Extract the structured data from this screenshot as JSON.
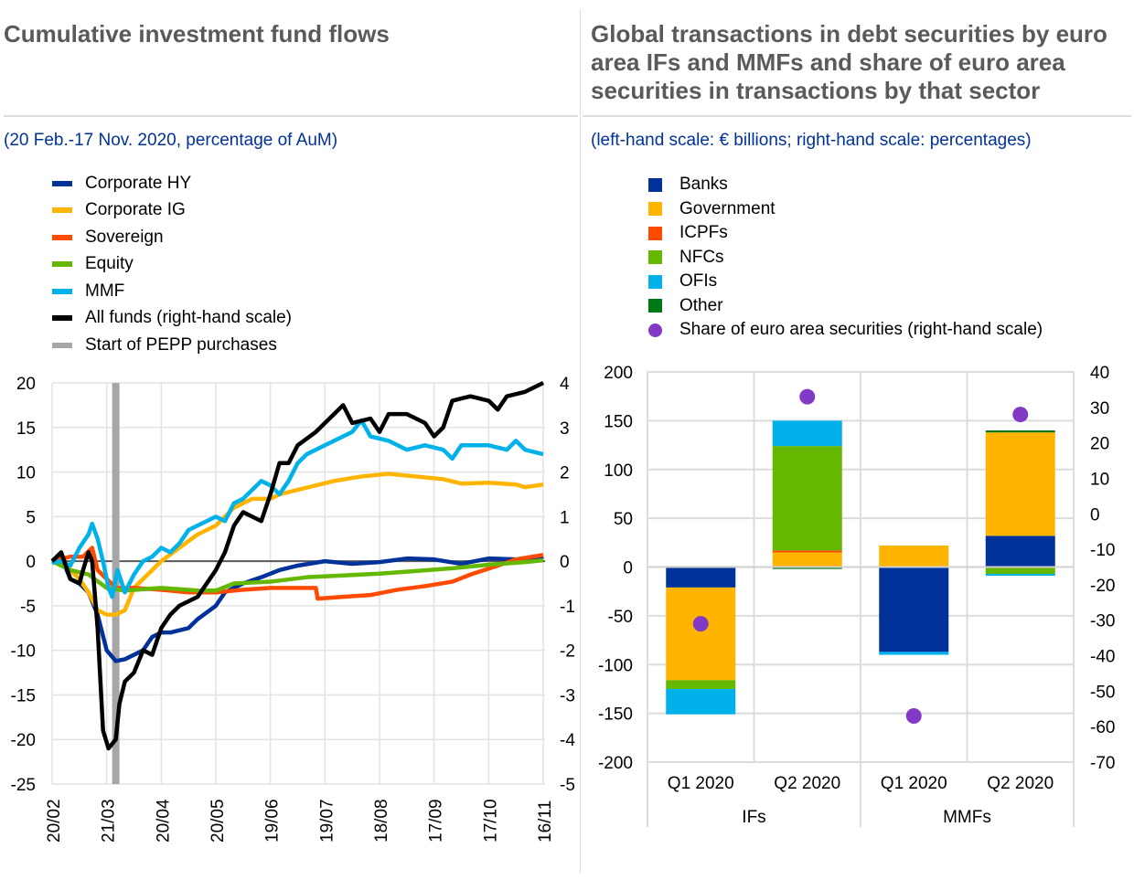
{
  "chart_data": [
    {
      "type": "line",
      "title": "Cumulative investment fund flows",
      "subtitle": "(20 Feb.-17 Nov. 2020, percentage of AuM)",
      "x_unit": "days since 20 Feb. 2020",
      "x_ticks": [
        {
          "day": 0,
          "label": "20/02"
        },
        {
          "day": 30,
          "label": "21/03"
        },
        {
          "day": 60,
          "label": "20/04"
        },
        {
          "day": 90,
          "label": "20/05"
        },
        {
          "day": 120,
          "label": "19/06"
        },
        {
          "day": 150,
          "label": "19/07"
        },
        {
          "day": 180,
          "label": "18/08"
        },
        {
          "day": 210,
          "label": "17/09"
        },
        {
          "day": 240,
          "label": "17/10"
        },
        {
          "day": 270,
          "label": "16/11"
        }
      ],
      "ylim": [
        -25,
        20
      ],
      "y_ticks": [
        "20",
        "15",
        "10",
        "5",
        "0",
        "-5",
        "-10",
        "-15",
        "-20",
        "-25"
      ],
      "y2lim": [
        -5,
        4
      ],
      "y2_ticks": [
        "4",
        "3",
        "2",
        "1",
        "0",
        "-1",
        "-2",
        "-3",
        "-4",
        "-5"
      ],
      "pepp_day": 35,
      "xlim": [
        0,
        271
      ],
      "series": [
        {
          "name": "Corporate HY",
          "color": "#003299",
          "axis": "left",
          "points": [
            [
              0,
              0
            ],
            [
              5,
              0.5
            ],
            [
              10,
              -2
            ],
            [
              15,
              -2.5
            ],
            [
              20,
              -3.5
            ],
            [
              25,
              -6
            ],
            [
              30,
              -10
            ],
            [
              35,
              -11.2
            ],
            [
              40,
              -11
            ],
            [
              45,
              -10.5
            ],
            [
              50,
              -10
            ],
            [
              55,
              -8.5
            ],
            [
              60,
              -8
            ],
            [
              65,
              -8
            ],
            [
              75,
              -7.5
            ],
            [
              80,
              -6.5
            ],
            [
              90,
              -5
            ],
            [
              95,
              -3.5
            ],
            [
              105,
              -2.5
            ],
            [
              115,
              -1.8
            ],
            [
              125,
              -1
            ],
            [
              135,
              -0.5
            ],
            [
              150,
              0
            ],
            [
              165,
              -0.3
            ],
            [
              180,
              -0.1
            ],
            [
              195,
              0.3
            ],
            [
              210,
              0.2
            ],
            [
              225,
              -0.3
            ],
            [
              240,
              0.3
            ],
            [
              255,
              0.2
            ],
            [
              265,
              0.1
            ],
            [
              270,
              0.5
            ]
          ]
        },
        {
          "name": "Corporate IG",
          "color": "#FFB400",
          "axis": "left",
          "points": [
            [
              0,
              0
            ],
            [
              10,
              -1
            ],
            [
              15,
              -2
            ],
            [
              20,
              -3.5
            ],
            [
              25,
              -5.5
            ],
            [
              30,
              -6
            ],
            [
              35,
              -6
            ],
            [
              40,
              -5.5
            ],
            [
              45,
              -3
            ],
            [
              50,
              -2
            ],
            [
              55,
              -1
            ],
            [
              60,
              0
            ],
            [
              70,
              1.5
            ],
            [
              80,
              3
            ],
            [
              90,
              4
            ],
            [
              100,
              6
            ],
            [
              110,
              7
            ],
            [
              120,
              7
            ],
            [
              125,
              7.5
            ],
            [
              135,
              8
            ],
            [
              145,
              8.5
            ],
            [
              155,
              9
            ],
            [
              170,
              9.5
            ],
            [
              185,
              9.8
            ],
            [
              200,
              9.5
            ],
            [
              215,
              9.2
            ],
            [
              225,
              8.7
            ],
            [
              240,
              8.8
            ],
            [
              255,
              8.6
            ],
            [
              260,
              8.3
            ],
            [
              270,
              8.6
            ]
          ]
        },
        {
          "name": "Sovereign",
          "color": "#FF4B00",
          "axis": "left",
          "points": [
            [
              0,
              0
            ],
            [
              10,
              0.5
            ],
            [
              17,
              0.5
            ],
            [
              22,
              1.5
            ],
            [
              25,
              -1
            ],
            [
              30,
              -2
            ],
            [
              35,
              -3
            ],
            [
              45,
              -3
            ],
            [
              60,
              -3.2
            ],
            [
              75,
              -3.5
            ],
            [
              90,
              -3.5
            ],
            [
              105,
              -3.2
            ],
            [
              120,
              -3
            ],
            [
              135,
              -3
            ],
            [
              145,
              -3
            ],
            [
              146,
              -4.2
            ],
            [
              160,
              -4
            ],
            [
              175,
              -3.8
            ],
            [
              190,
              -3.2
            ],
            [
              205,
              -2.8
            ],
            [
              220,
              -2.3
            ],
            [
              230,
              -1.5
            ],
            [
              245,
              -0.5
            ],
            [
              255,
              0.2
            ],
            [
              270,
              0.7
            ]
          ]
        },
        {
          "name": "Equity",
          "color": "#65B800",
          "axis": "left",
          "points": [
            [
              0,
              0
            ],
            [
              10,
              -1
            ],
            [
              20,
              -1.5
            ],
            [
              30,
              -3
            ],
            [
              40,
              -3.3
            ],
            [
              60,
              -3
            ],
            [
              80,
              -3.3
            ],
            [
              90,
              -3.3
            ],
            [
              100,
              -2.5
            ],
            [
              120,
              -2.3
            ],
            [
              140,
              -1.8
            ],
            [
              160,
              -1.6
            ],
            [
              180,
              -1.4
            ],
            [
              200,
              -1.1
            ],
            [
              220,
              -0.8
            ],
            [
              240,
              -0.4
            ],
            [
              260,
              -0.1
            ],
            [
              270,
              0.1
            ]
          ]
        },
        {
          "name": "MMF",
          "color": "#00B1EA",
          "axis": "left",
          "points": [
            [
              0,
              -0.2
            ],
            [
              5,
              0
            ],
            [
              10,
              -0.5
            ],
            [
              15,
              1.5
            ],
            [
              20,
              3
            ],
            [
              22,
              4.2
            ],
            [
              25,
              2.5
            ],
            [
              28,
              0
            ],
            [
              31,
              -3
            ],
            [
              33,
              -4
            ],
            [
              36,
              -1
            ],
            [
              40,
              -3.5
            ],
            [
              45,
              -1.5
            ],
            [
              50,
              0
            ],
            [
              55,
              0.5
            ],
            [
              60,
              1.5
            ],
            [
              65,
              1
            ],
            [
              70,
              2
            ],
            [
              75,
              3.5
            ],
            [
              80,
              4
            ],
            [
              85,
              4.5
            ],
            [
              90,
              5
            ],
            [
              95,
              4.5
            ],
            [
              100,
              6.5
            ],
            [
              105,
              7
            ],
            [
              110,
              8
            ],
            [
              115,
              9
            ],
            [
              120,
              8.5
            ],
            [
              125,
              7.5
            ],
            [
              130,
              9
            ],
            [
              135,
              11
            ],
            [
              140,
              12
            ],
            [
              145,
              12.5
            ],
            [
              155,
              13.5
            ],
            [
              165,
              14.5
            ],
            [
              170,
              15.8
            ],
            [
              175,
              14
            ],
            [
              185,
              13.5
            ],
            [
              195,
              12.5
            ],
            [
              205,
              13
            ],
            [
              215,
              12.5
            ],
            [
              220,
              11.5
            ],
            [
              225,
              13
            ],
            [
              240,
              13
            ],
            [
              250,
              12.5
            ],
            [
              255,
              13.5
            ],
            [
              260,
              12.5
            ],
            [
              270,
              12
            ]
          ]
        },
        {
          "name": "All funds (right-hand scale)",
          "color": "#000000",
          "axis": "right",
          "points": [
            [
              0,
              0
            ],
            [
              5,
              0.2
            ],
            [
              10,
              -0.4
            ],
            [
              15,
              -0.5
            ],
            [
              17,
              -0.2
            ],
            [
              20,
              0.2
            ],
            [
              22,
              0
            ],
            [
              25,
              -1.5
            ],
            [
              28,
              -3.8
            ],
            [
              31,
              -4.2
            ],
            [
              35,
              -4
            ],
            [
              37,
              -3.2
            ],
            [
              40,
              -2.7
            ],
            [
              45,
              -2.5
            ],
            [
              50,
              -2
            ],
            [
              55,
              -2.1
            ],
            [
              60,
              -1.5
            ],
            [
              65,
              -1.2
            ],
            [
              70,
              -1
            ],
            [
              80,
              -0.8
            ],
            [
              90,
              -0.2
            ],
            [
              95,
              0.2
            ],
            [
              100,
              0.8
            ],
            [
              105,
              1.1
            ],
            [
              110,
              1.0
            ],
            [
              115,
              0.9
            ],
            [
              120,
              1.5
            ],
            [
              125,
              2.2
            ],
            [
              130,
              2.2
            ],
            [
              135,
              2.6
            ],
            [
              145,
              2.9
            ],
            [
              155,
              3.3
            ],
            [
              160,
              3.5
            ],
            [
              165,
              3.1
            ],
            [
              175,
              3.2
            ],
            [
              180,
              2.9
            ],
            [
              185,
              3.3
            ],
            [
              195,
              3.3
            ],
            [
              205,
              3.1
            ],
            [
              210,
              2.8
            ],
            [
              215,
              3.0
            ],
            [
              220,
              3.6
            ],
            [
              230,
              3.7
            ],
            [
              240,
              3.6
            ],
            [
              245,
              3.4
            ],
            [
              250,
              3.7
            ],
            [
              260,
              3.8
            ],
            [
              270,
              4.0
            ]
          ]
        }
      ],
      "pepp_label": "Start of PEPP purchases",
      "pepp_color": "#A6A6A6"
    },
    {
      "type": "bar",
      "stacked": true,
      "title": "Global transactions in debt securities by euro area IFs and MMFs and share of euro area securities in transactions by that sector",
      "subtitle": "(left-hand scale: € billions; right-hand scale: percentages)",
      "ylim": [
        -200,
        200
      ],
      "y_ticks": [
        "200",
        "150",
        "100",
        "50",
        "0",
        "-50",
        "-100",
        "-150",
        "-200"
      ],
      "y2lim": [
        -70,
        40
      ],
      "y2_ticks": [
        "40",
        "30",
        "20",
        "10",
        "0",
        "-10",
        "-20",
        "-30",
        "-40",
        "-50",
        "-60",
        "-70"
      ],
      "categories": [
        "Q1 2020",
        "Q2 2020",
        "Q1 2020",
        "Q2 2020"
      ],
      "groups": [
        "IFs",
        "MMFs"
      ],
      "series": [
        {
          "name": "Banks",
          "color": "#003299",
          "values": [
            -21,
            0,
            -87,
            32
          ]
        },
        {
          "name": "Government",
          "color": "#FFB400",
          "values": [
            -95,
            15,
            22,
            106
          ]
        },
        {
          "name": "ICPFs",
          "color": "#FF4B00",
          "values": [
            0,
            2,
            0,
            0
          ]
        },
        {
          "name": "NFCs",
          "color": "#65B800",
          "values": [
            -9,
            107,
            0,
            -7
          ]
        },
        {
          "name": "OFIs",
          "color": "#00B1EA",
          "values": [
            -26,
            26,
            -3,
            -2
          ]
        },
        {
          "name": "Other",
          "color": "#007816",
          "values": [
            1,
            -2,
            0,
            2
          ]
        }
      ],
      "share": {
        "name": "Share of euro area securities (right-hand scale)",
        "color": "#8139C6",
        "values": [
          -31,
          33,
          -57,
          28
        ]
      }
    }
  ]
}
